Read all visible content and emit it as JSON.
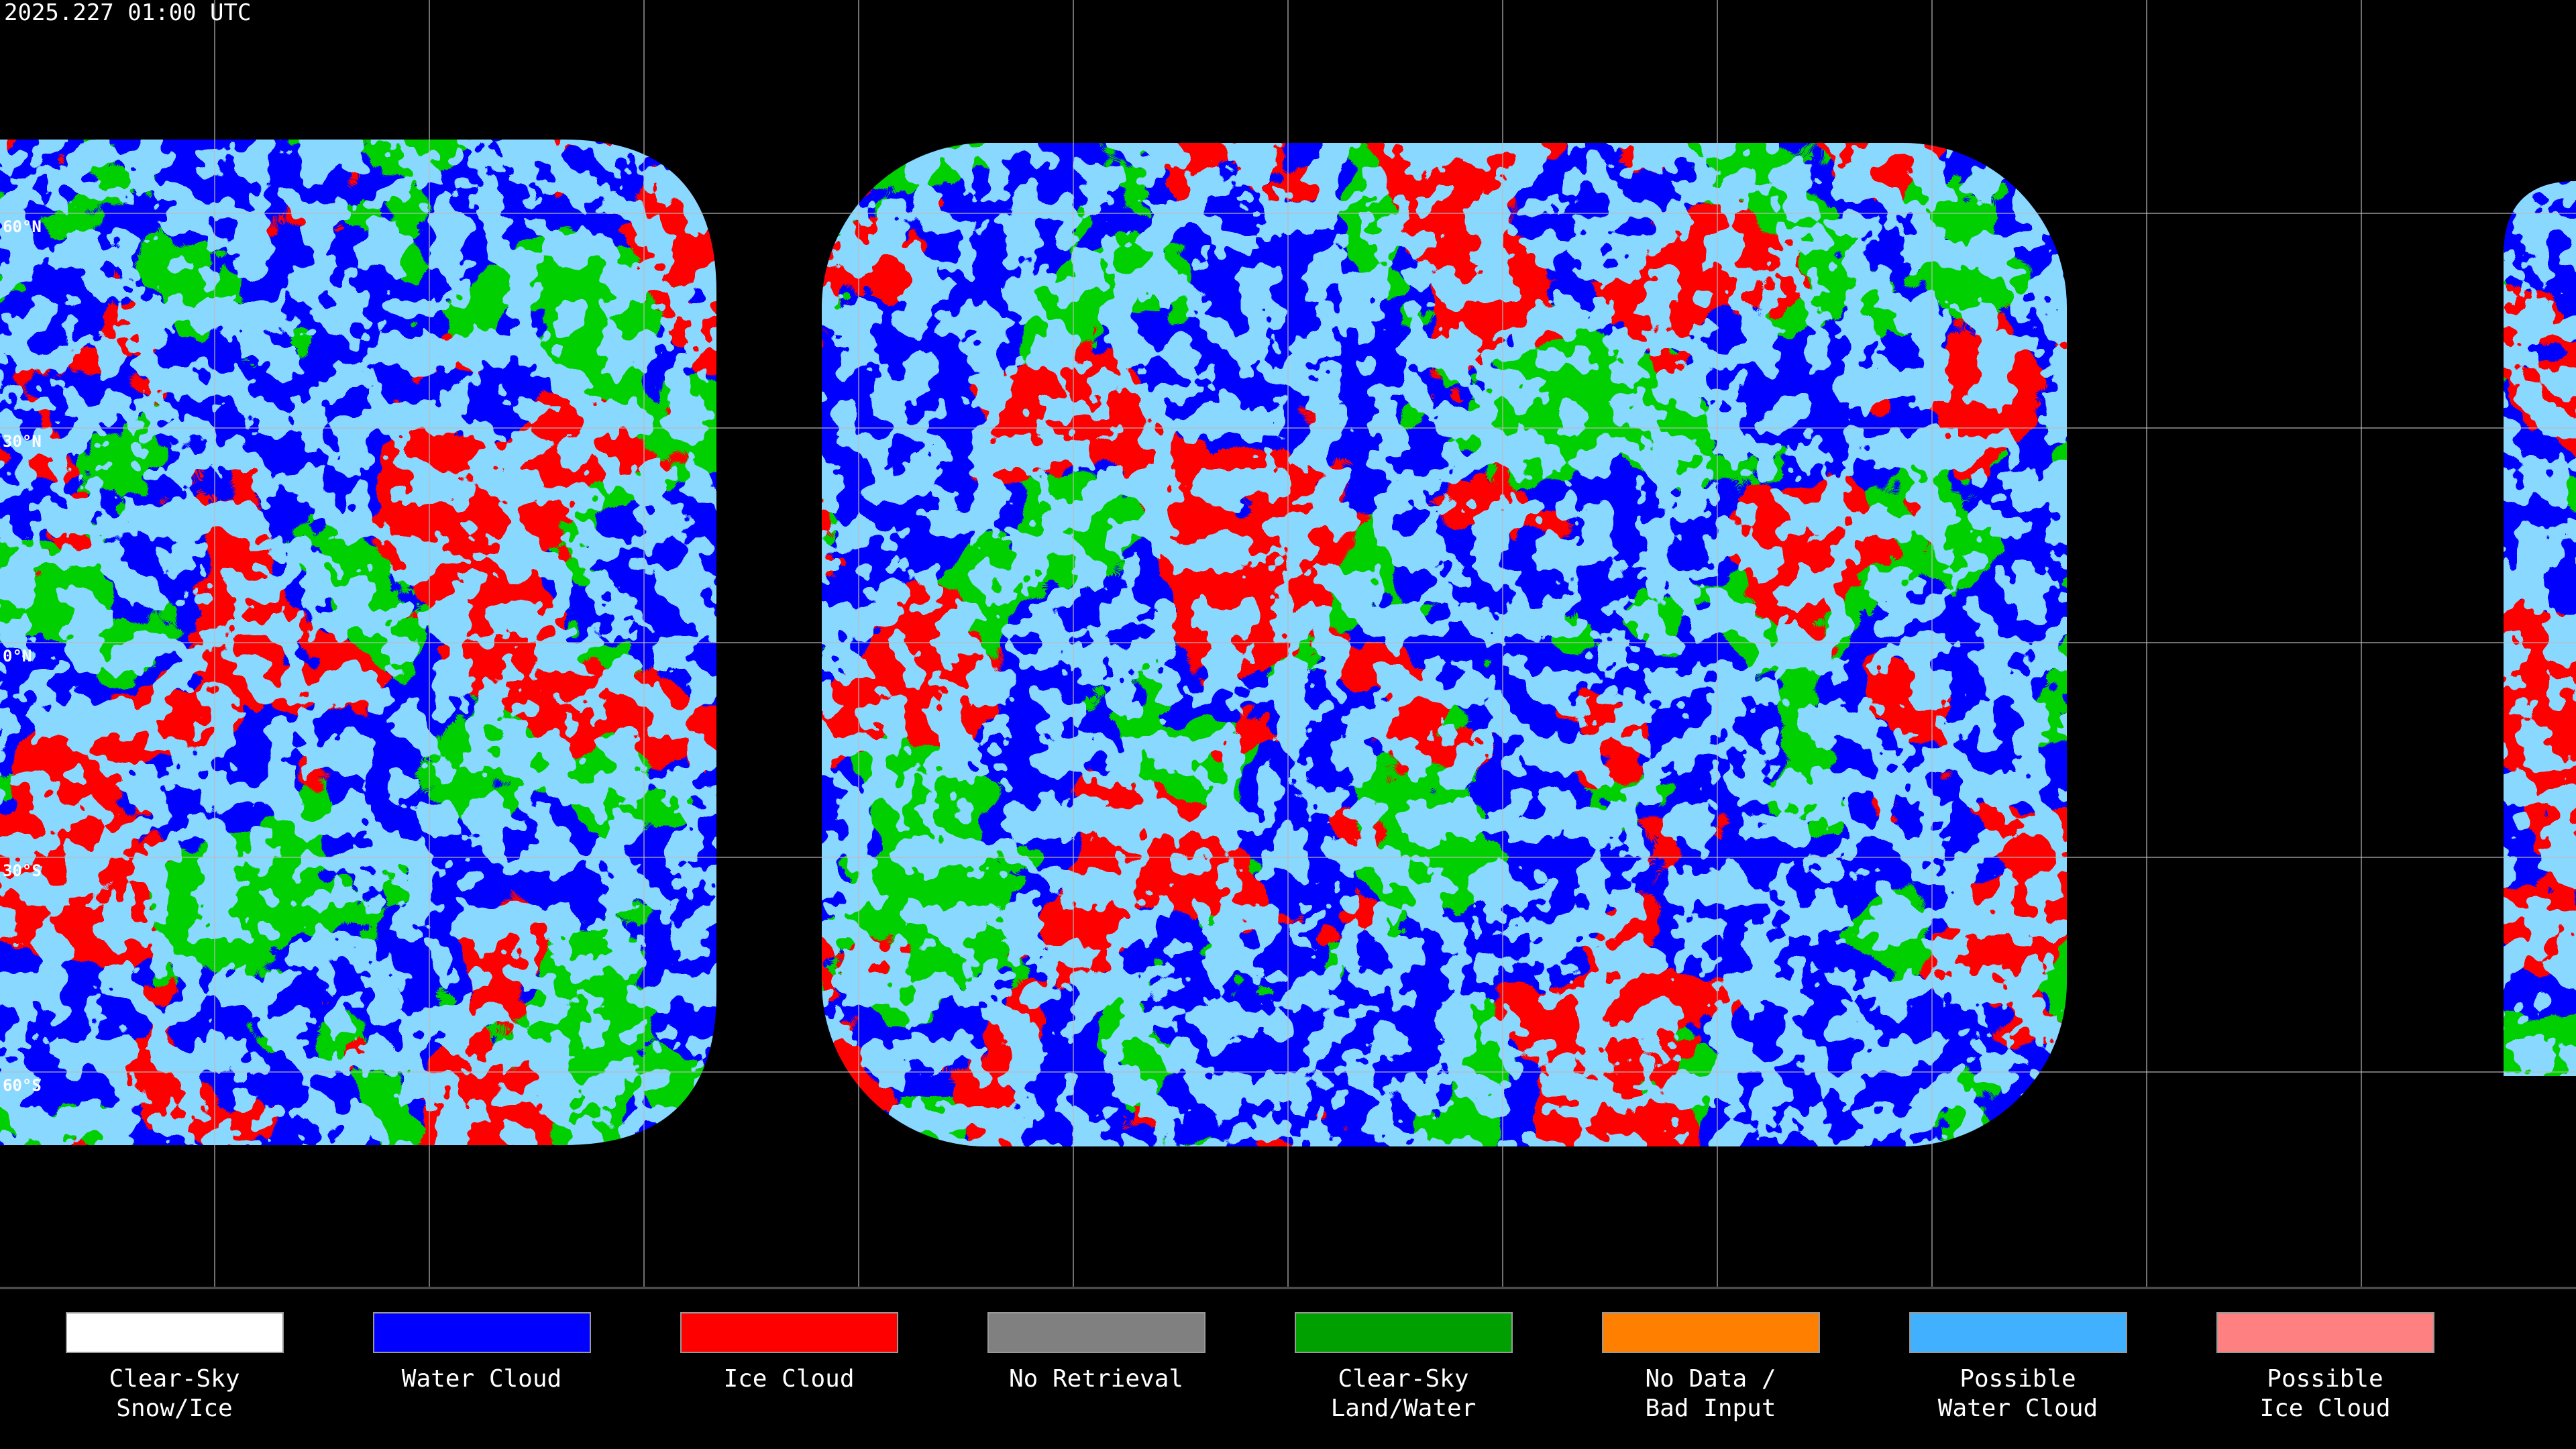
{
  "header": {
    "title": "2025.227 01:00 UTC"
  },
  "map": {
    "lat_labels": [
      "60°N",
      "30°N",
      "0°N",
      "30°S",
      "60°S"
    ]
  },
  "legend": [
    {
      "lines": [
        "Clear-Sky",
        "Snow/Ice"
      ],
      "color": "#ffffff"
    },
    {
      "lines": [
        "Water Cloud"
      ],
      "color": "#0000ff"
    },
    {
      "lines": [
        "Ice Cloud"
      ],
      "color": "#ff0000"
    },
    {
      "lines": [
        "No Retrieval"
      ],
      "color": "#808080"
    },
    {
      "lines": [
        "Clear-Sky",
        "Land/Water"
      ],
      "color": "#00a000"
    },
    {
      "lines": [
        "No Data /",
        "Bad Input"
      ],
      "color": "#ff8000"
    },
    {
      "lines": [
        "Possible",
        "Water Cloud"
      ],
      "color": "#40b0ff"
    },
    {
      "lines": [
        "Possible",
        "Ice Cloud"
      ],
      "color": "#ff8080"
    }
  ]
}
